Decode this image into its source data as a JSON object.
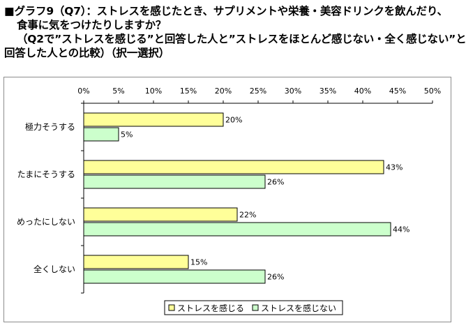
{
  "header": {
    "title_lines": [
      "■グラフ9（Q7）：ストレスを感じたとき、サプリメントや栄養・美容ドリンクを飲んだり、",
      "食事に気をつけたりしますか？",
      "（Q2で”ストレスを感じる”と回答した人と”ストレスをほとんど感じない・全く感じない”と",
      "回答した人との比較）（択一選択）"
    ]
  },
  "colors": {
    "series_1": "#ffff99",
    "series_2": "#ccffcc",
    "bar_border": "#000000",
    "axis": "#000000",
    "frame": "#8c8c8c"
  },
  "chart_data": {
    "type": "bar",
    "orientation": "horizontal",
    "title": "",
    "xlabel": "",
    "ylabel": "",
    "xlim": [
      0,
      50
    ],
    "x_ticks": [
      0,
      5,
      10,
      15,
      20,
      25,
      30,
      35,
      40,
      45,
      50
    ],
    "x_tick_labels": [
      "0%",
      "5%",
      "10%",
      "15%",
      "20%",
      "25%",
      "30%",
      "35%",
      "40%",
      "45%",
      "50%"
    ],
    "x_axis_position": "top",
    "grid": false,
    "legend_position": "bottom",
    "categories": [
      "極力そうする",
      "たまにそうする",
      "めったにしない",
      "全くしない"
    ],
    "series": [
      {
        "name": "ストレスを感じる",
        "values": [
          20,
          43,
          22,
          15
        ]
      },
      {
        "name": "ストレスを感じない",
        "values": [
          5,
          26,
          44,
          26
        ]
      }
    ],
    "value_suffix": "%"
  }
}
